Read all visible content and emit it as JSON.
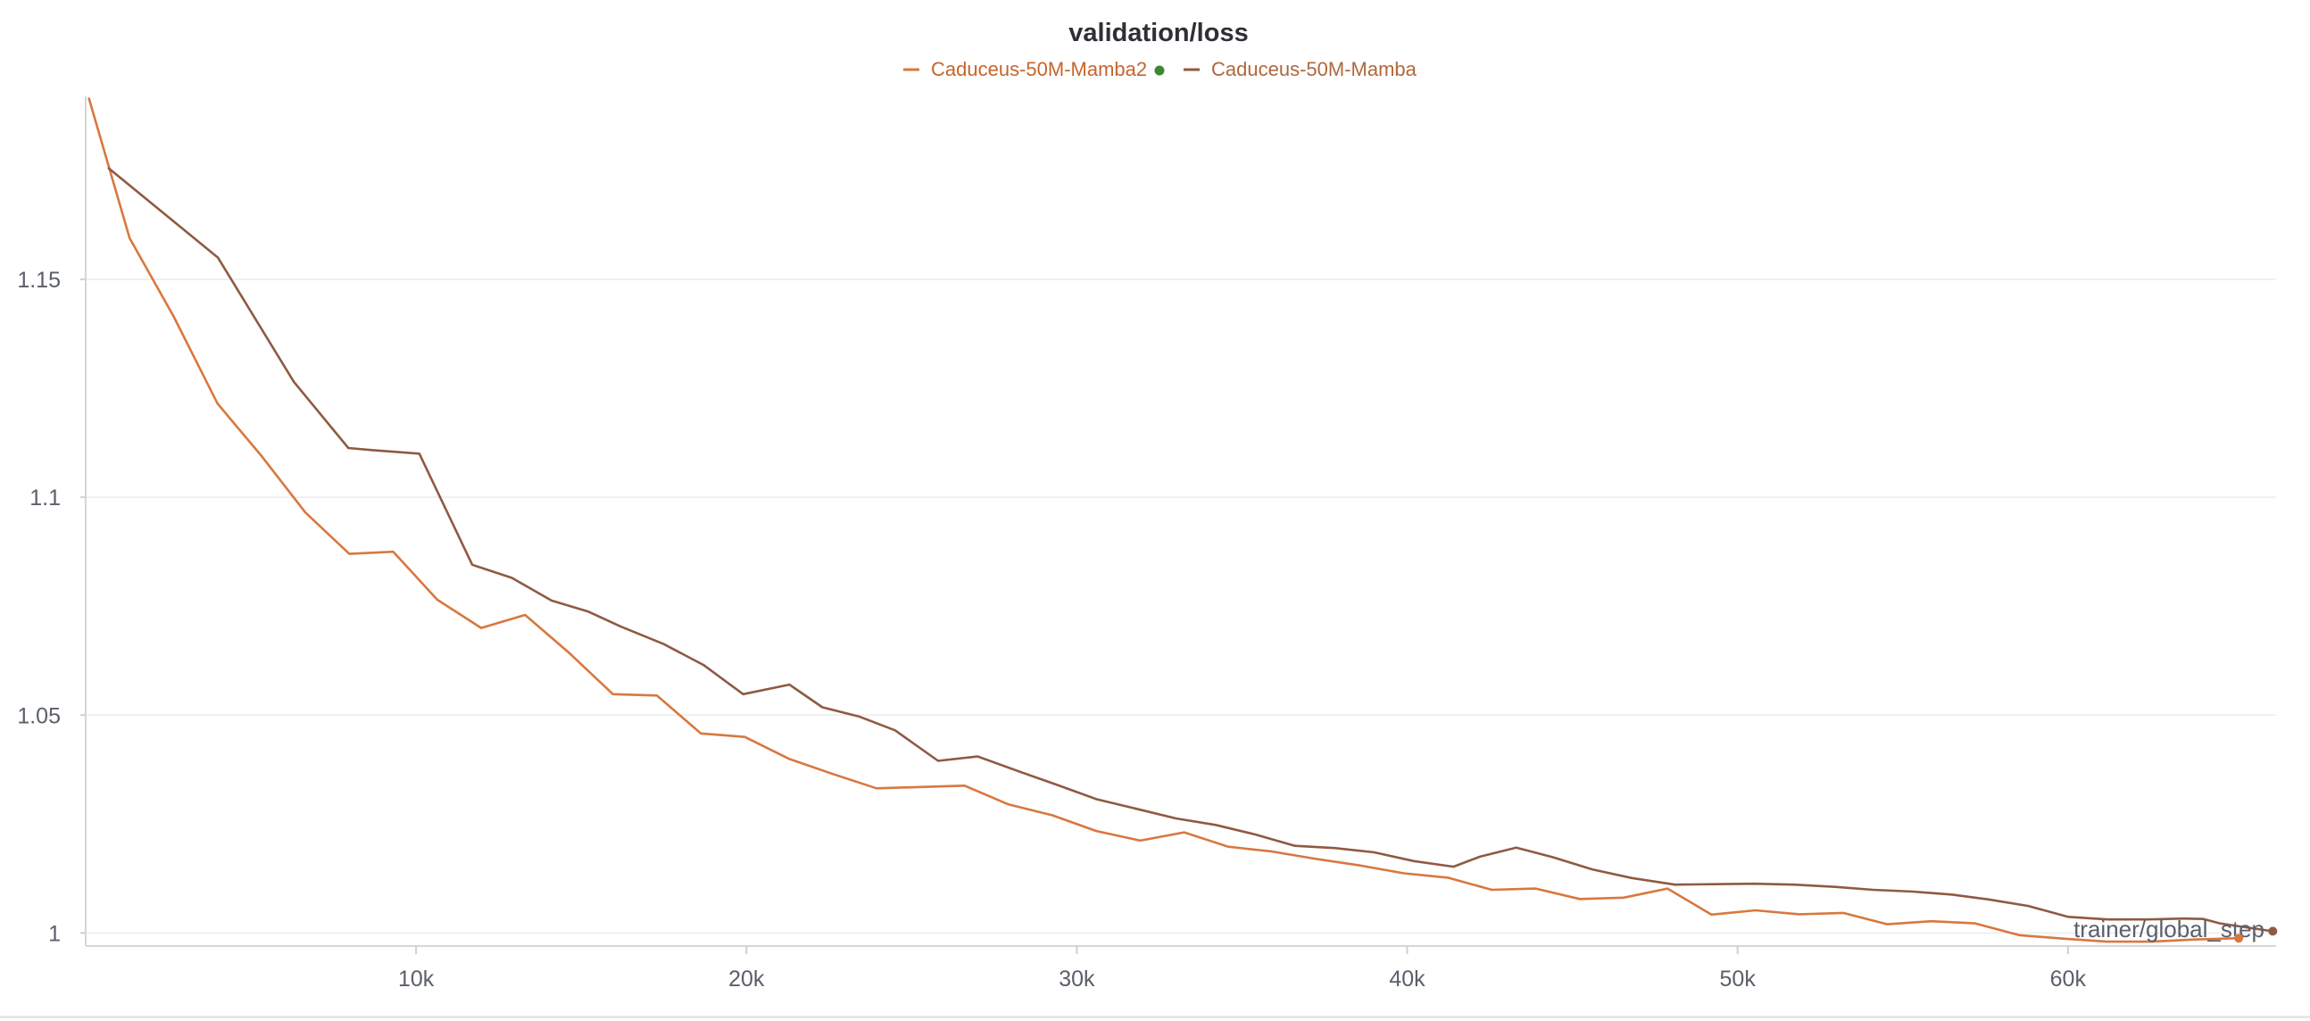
{
  "chart_data": {
    "type": "line",
    "title": "validation/loss",
    "xlabel": "trainer/global_step",
    "ylabel": "",
    "xlim": [
      0,
      66300
    ],
    "ylim": [
      0.997,
      1.192
    ],
    "grid": true,
    "legend_position": "top-center",
    "x_ticks": [
      {
        "value": 10000,
        "label": "10k"
      },
      {
        "value": 20000,
        "label": "20k"
      },
      {
        "value": 30000,
        "label": "30k"
      },
      {
        "value": 40000,
        "label": "40k"
      },
      {
        "value": 50000,
        "label": "50k"
      },
      {
        "value": 60000,
        "label": "60k"
      }
    ],
    "y_ticks": [
      {
        "value": 1.0,
        "label": "1"
      },
      {
        "value": 1.05,
        "label": "1.05"
      },
      {
        "value": 1.1,
        "label": "1.1"
      },
      {
        "value": 1.15,
        "label": "1.15"
      }
    ],
    "series": [
      {
        "name": "Caduceus-50M-Mamba2",
        "color": "#d9773f",
        "legend_dot_color": "#3b8a2e",
        "x": [
          100,
          1330,
          2660,
          3990,
          5320,
          6650,
          7980,
          9310,
          10640,
          11970,
          13300,
          14630,
          15960,
          17290,
          18620,
          19950,
          21280,
          22610,
          23940,
          25270,
          26600,
          27930,
          29260,
          30590,
          31920,
          33250,
          34580,
          35910,
          37240,
          38570,
          39900,
          41230,
          42560,
          43890,
          45220,
          46550,
          47880,
          49210,
          50540,
          51870,
          53200,
          54530,
          55860,
          57190,
          58520,
          59850,
          61180,
          62510,
          63840,
          65170
        ],
        "y": [
          1.1915,
          1.1595,
          1.1415,
          1.1215,
          1.1095,
          1.0965,
          1.087,
          1.0875,
          1.0765,
          1.07,
          1.073,
          1.0643,
          1.0548,
          1.0545,
          1.0458,
          1.045,
          1.04,
          1.0365,
          1.0332,
          1.0335,
          1.0338,
          1.0295,
          1.027,
          1.0234,
          1.0212,
          1.0231,
          1.0198,
          1.0187,
          1.017,
          1.0155,
          1.0137,
          1.0127,
          1.0099,
          1.0102,
          1.0078,
          1.0081,
          1.0102,
          1.0042,
          1.0052,
          1.0043,
          1.0046,
          1.002,
          1.0027,
          1.0022,
          0.9995,
          0.9987,
          0.998,
          0.998,
          0.9985,
          0.9988
        ]
      },
      {
        "name": "Caduceus-50M-Mamba",
        "color": "#8f5a42",
        "x": [
          700,
          4000,
          6300,
          7950,
          8700,
          10100,
          11700,
          12900,
          14100,
          15200,
          16200,
          17500,
          18700,
          19900,
          21300,
          22300,
          23400,
          24500,
          25800,
          27000,
          28200,
          29400,
          30600,
          31800,
          33000,
          34200,
          35400,
          36600,
          37800,
          39000,
          40200,
          41400,
          42200,
          43300,
          44400,
          45600,
          46800,
          48100,
          49300,
          50500,
          51700,
          52900,
          54100,
          55300,
          56500,
          57600,
          58800,
          60000,
          61200,
          62400,
          63500,
          64100,
          64600,
          65200,
          66200
        ],
        "y": [
          1.1755,
          1.155,
          1.1265,
          1.1113,
          1.1108,
          1.11,
          1.0845,
          1.0815,
          1.0763,
          1.0738,
          1.0703,
          1.0663,
          1.0615,
          1.0548,
          1.057,
          1.0518,
          1.0497,
          1.0465,
          1.0395,
          1.0405,
          1.0372,
          1.034,
          1.0307,
          1.0285,
          1.0263,
          1.0248,
          1.0226,
          1.02,
          1.0195,
          1.0185,
          1.0165,
          1.0152,
          1.0175,
          1.0196,
          1.0174,
          1.0146,
          1.0126,
          1.0111,
          1.0112,
          1.0113,
          1.0111,
          1.0106,
          1.0099,
          1.0095,
          1.0088,
          1.0077,
          1.0062,
          1.0037,
          1.0031,
          1.0031,
          1.0033,
          1.0032,
          1.0022,
          1.0015,
          1.0004
        ]
      }
    ]
  }
}
